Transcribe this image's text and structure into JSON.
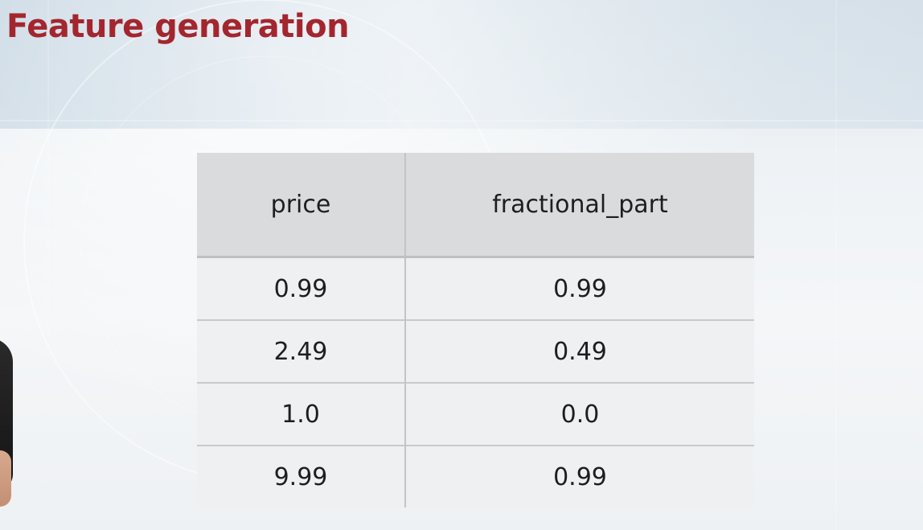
{
  "slide": {
    "title": "Feature generation"
  },
  "table": {
    "columns": [
      "price",
      "fractional_part"
    ],
    "rows": [
      [
        "0.99",
        "0.99"
      ],
      [
        "2.49",
        "0.49"
      ],
      [
        "1.0",
        "0.0"
      ],
      [
        "9.99",
        "0.99"
      ]
    ]
  },
  "colors": {
    "title": "#a3262f",
    "header_background": "#dadbdc",
    "row_background": "#eef0f1"
  }
}
